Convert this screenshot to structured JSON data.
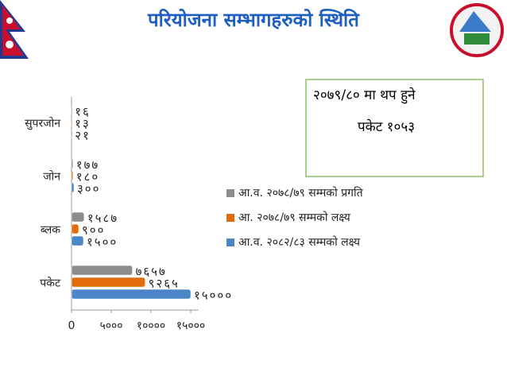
{
  "chart_data": {
    "type": "hbar",
    "title": "परियोजना सम्भागहरुको स्थिति",
    "categories": [
      "पकेट",
      "ब्लक",
      "जोन",
      "सुपरजोन"
    ],
    "series": [
      {
        "name": "आ.व. २०७८/७९ सम्मको प्रगति",
        "color": "#8c8c8c",
        "values": [
          7657,
          1587,
          177,
          16
        ],
        "value_labels": [
          "७६५७",
          "१५८७",
          "१७७",
          "१६"
        ]
      },
      {
        "name": "आ. २०७८/७९ सम्मको लक्ष्य",
        "color": "#e36c0a",
        "values": [
          9265,
          900,
          180,
          13
        ],
        "value_labels": [
          "९२६५",
          "९००",
          "१८०",
          "१३"
        ]
      },
      {
        "name": "आ.व. २०८२/८३ सम्मको लक्ष्य",
        "color": "#4a86c8",
        "values": [
          15000,
          1500,
          300,
          21
        ],
        "value_labels": [
          "१५०००",
          "१५००",
          "३००",
          "२१"
        ]
      }
    ],
    "xlim": [
      0,
      15000
    ],
    "xticks": [
      0,
      {
        "value": 5000,
        "label": "५०००"
      },
      {
        "value": 10000,
        "label": "१००००"
      },
      {
        "value": 15000,
        "label": "१५०००"
      }
    ],
    "legend": "right"
  },
  "note": {
    "line1": "२०७९/८० मा  थप हुने",
    "line2": "पकेट १०५३"
  }
}
